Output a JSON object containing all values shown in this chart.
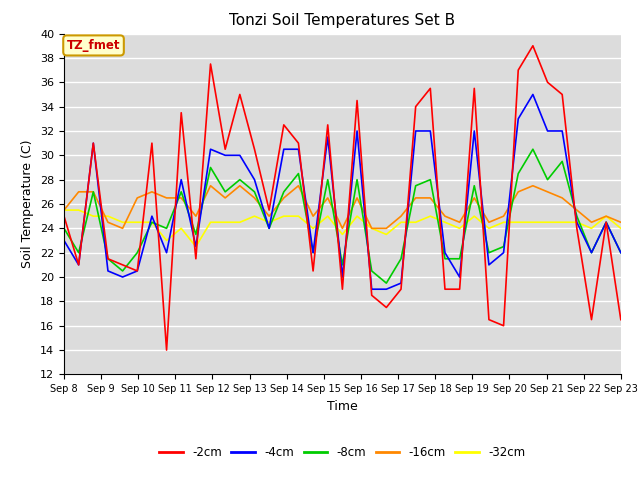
{
  "title": "Tonzi Soil Temperatures Set B",
  "xlabel": "Time",
  "ylabel": "Soil Temperature (C)",
  "ylim": [
    12,
    40
  ],
  "xtick_labels": [
    "Sep 8",
    "Sep 9",
    "Sep 10",
    "Sep 11",
    "Sep 12",
    "Sep 13",
    "Sep 14",
    "Sep 15",
    "Sep 16",
    "Sep 17",
    "Sep 18",
    "Sep 19",
    "Sep 20",
    "Sep 21",
    "Sep 22",
    "Sep 23"
  ],
  "annotation_text": "TZ_fmet",
  "annotation_bg": "#ffffcc",
  "annotation_border": "#cc9900",
  "background_color": "#dcdcdc",
  "grid_color": "#ffffff",
  "series": {
    "neg2cm": {
      "color": "#ff0000",
      "label": "-2cm",
      "values": [
        25.0,
        21.0,
        31.0,
        21.5,
        21.0,
        20.5,
        31.0,
        14.0,
        33.5,
        21.5,
        37.5,
        30.5,
        35.0,
        30.5,
        25.5,
        32.5,
        31.0,
        20.5,
        32.5,
        19.0,
        34.5,
        18.5,
        17.5,
        19.0,
        34.0,
        35.5,
        19.0,
        19.0,
        35.5,
        16.5,
        16.0,
        37.0,
        39.0,
        36.0,
        35.0,
        24.0,
        16.5,
        24.5,
        16.5
      ]
    },
    "neg4cm": {
      "color": "#0000ff",
      "label": "-4cm",
      "values": [
        23.0,
        21.0,
        31.0,
        20.5,
        20.0,
        20.5,
        25.0,
        22.0,
        28.0,
        22.5,
        30.5,
        30.0,
        30.0,
        28.0,
        24.0,
        30.5,
        30.5,
        22.0,
        31.5,
        20.0,
        32.0,
        19.0,
        19.0,
        19.5,
        32.0,
        32.0,
        22.0,
        20.0,
        32.0,
        21.0,
        22.0,
        33.0,
        35.0,
        32.0,
        32.0,
        24.5,
        22.0,
        24.5,
        22.0
      ]
    },
    "neg8cm": {
      "color": "#00cc00",
      "label": "-8cm",
      "values": [
        24.0,
        22.0,
        27.0,
        21.5,
        20.5,
        22.0,
        24.5,
        24.0,
        27.0,
        23.5,
        29.0,
        27.0,
        28.0,
        27.0,
        24.0,
        27.0,
        28.5,
        22.0,
        28.0,
        21.0,
        28.0,
        20.5,
        19.5,
        21.5,
        27.5,
        28.0,
        21.5,
        21.5,
        27.5,
        22.0,
        22.5,
        28.5,
        30.5,
        28.0,
        29.5,
        25.0,
        22.0,
        24.5,
        22.0
      ]
    },
    "neg16cm": {
      "color": "#ff8800",
      "label": "-16cm",
      "values": [
        25.5,
        27.0,
        27.0,
        24.5,
        24.0,
        26.5,
        27.0,
        26.5,
        26.5,
        25.0,
        27.5,
        26.5,
        27.5,
        26.5,
        25.0,
        26.5,
        27.5,
        25.0,
        26.5,
        24.0,
        26.5,
        24.0,
        24.0,
        25.0,
        26.5,
        26.5,
        25.0,
        24.5,
        26.5,
        24.5,
        25.0,
        27.0,
        27.5,
        27.0,
        26.5,
        25.5,
        24.5,
        25.0,
        24.5
      ]
    },
    "neg32cm": {
      "color": "#ffff00",
      "label": "-32cm",
      "values": [
        25.5,
        25.5,
        25.0,
        25.0,
        24.5,
        24.5,
        24.5,
        23.0,
        24.0,
        22.5,
        24.5,
        24.5,
        24.5,
        25.0,
        24.5,
        25.0,
        25.0,
        24.0,
        25.0,
        23.5,
        25.0,
        24.0,
        23.5,
        24.5,
        24.5,
        25.0,
        24.5,
        24.0,
        25.0,
        24.0,
        24.5,
        24.5,
        24.5,
        24.5,
        24.5,
        24.5,
        24.0,
        25.0,
        24.0
      ]
    }
  }
}
